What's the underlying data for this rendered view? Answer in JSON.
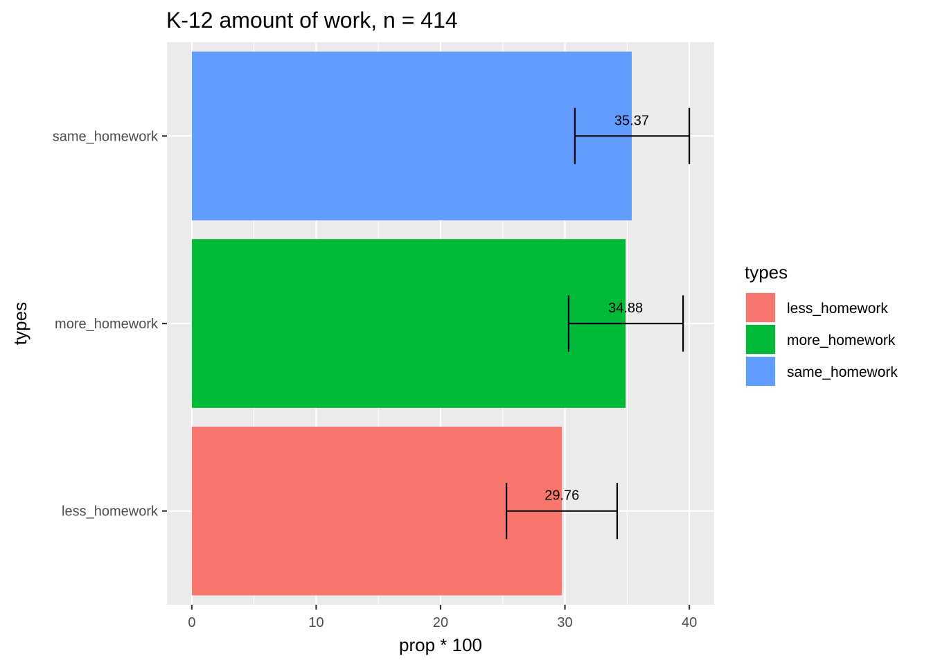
{
  "chart_data": {
    "type": "bar",
    "orientation": "horizontal",
    "title": "K-12 amount of work, n = 414",
    "xlabel": "prop * 100",
    "ylabel": "types",
    "categories": [
      "less_homework",
      "more_homework",
      "same_homework"
    ],
    "values": [
      29.76,
      34.88,
      35.37
    ],
    "error_low": [
      25.3,
      30.3,
      30.8
    ],
    "error_high": [
      34.2,
      39.5,
      40.0
    ],
    "data_labels": [
      "29.76",
      "34.88",
      "35.37"
    ],
    "colors": [
      "#F8766D",
      "#00BA38",
      "#619CFF"
    ],
    "xlim": [
      -2,
      42
    ],
    "xticks": [
      0,
      10,
      20,
      30,
      40
    ],
    "xtick_labels": [
      "0",
      "10",
      "20",
      "30",
      "40"
    ],
    "grid": true,
    "legend": {
      "title": "types",
      "placement": "right",
      "entries": [
        "less_homework",
        "more_homework",
        "same_homework"
      ]
    }
  }
}
